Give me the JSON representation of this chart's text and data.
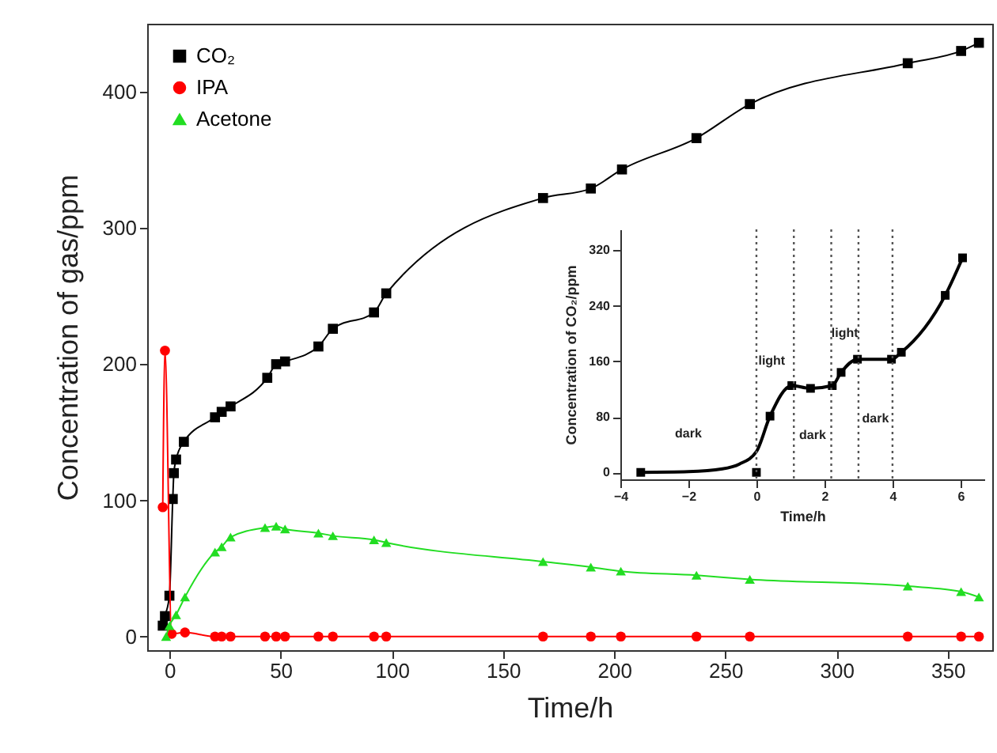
{
  "chart_data": [
    {
      "type": "line",
      "xlabel": "Time/h",
      "ylabel": "Concentration of gas/ppm",
      "xlim": [
        -10,
        370
      ],
      "ylim": [
        -10,
        450
      ],
      "xticks": [
        0,
        50,
        100,
        150,
        200,
        250,
        300,
        350
      ],
      "yticks": [
        0,
        100,
        200,
        300,
        400
      ],
      "legend": "top left",
      "grid": false,
      "line_style": "solid",
      "series": [
        {
          "name": "CO₂",
          "color": "#000000",
          "marker": "square",
          "x": [
            -3,
            -2,
            0,
            1.5,
            2,
            3,
            6.5,
            20.5,
            23.5,
            27.5,
            44,
            48,
            52,
            67,
            73.5,
            92,
            97.5,
            168,
            189.5,
            203.5,
            237,
            261,
            332,
            356,
            364
          ],
          "values": [
            8,
            15,
            30,
            101,
            120,
            130,
            143,
            161,
            165,
            169,
            190,
            200,
            202,
            213,
            226,
            238,
            252,
            322,
            329,
            343,
            366,
            391,
            421,
            430,
            436
          ]
        },
        {
          "name": "IPA",
          "color": "#ff0000",
          "marker": "circle",
          "x": [
            -3,
            -2,
            1,
            7,
            20.5,
            23.5,
            27.5,
            43,
            48,
            52,
            67,
            73.5,
            92,
            97.5,
            168,
            189.5,
            203,
            237,
            261,
            332,
            356,
            364
          ],
          "values": [
            95,
            210,
            2,
            3,
            0,
            0,
            0,
            0,
            0,
            0,
            0,
            0,
            0,
            0,
            0,
            0,
            0,
            0,
            0,
            0,
            0,
            0
          ]
        },
        {
          "name": "Acetone",
          "color": "#22dd22",
          "marker": "triangle",
          "x": [
            -1.5,
            0,
            3,
            7,
            20.5,
            23.5,
            27.5,
            43,
            48,
            52,
            67,
            73.5,
            92,
            97.5,
            168,
            189.5,
            203,
            237,
            261,
            332,
            356,
            364
          ],
          "values": [
            0,
            8,
            16,
            29,
            62,
            66,
            73,
            80,
            81,
            79,
            76,
            74,
            71,
            69,
            55,
            51,
            48,
            45,
            42,
            37,
            33,
            29
          ]
        }
      ]
    },
    {
      "type": "line",
      "xlabel": "Time/h",
      "ylabel": "Concentration of CO₂/ppm",
      "xlim": [
        -4,
        6.7
      ],
      "ylim": [
        -10,
        350
      ],
      "xticks": [
        -4,
        -2,
        0,
        2,
        4,
        6
      ],
      "yticks": [
        0,
        80,
        160,
        240,
        320
      ],
      "grid": false,
      "line_style": "solid",
      "ref_lines": [
        {
          "axis": "x",
          "value": 0,
          "line_style": "dotted",
          "color": "#555555"
        },
        {
          "axis": "x",
          "value": 1.1,
          "line_style": "dotted",
          "color": "#555555"
        },
        {
          "axis": "x",
          "value": 2.2,
          "line_style": "dotted",
          "color": "#555555"
        },
        {
          "axis": "x",
          "value": 3,
          "line_style": "dotted",
          "color": "#555555"
        },
        {
          "axis": "x",
          "value": 4,
          "line_style": "dotted",
          "color": "#555555"
        }
      ],
      "annotations": [
        "dark",
        "light",
        "dark",
        "light",
        "dark"
      ],
      "series": [
        {
          "color": "#000000",
          "marker": "none",
          "x": [
            -3.4,
            -2,
            -1,
            -0.5,
            0,
            0.4,
            1.04,
            1.59,
            2.23,
            2.49,
            2.97,
            3.97,
            4.26,
            5.55,
            6.06
          ],
          "values": [
            0,
            1,
            5,
            12,
            30,
            81,
            125,
            121,
            125,
            144,
            163,
            163,
            173,
            255,
            309
          ]
        },
        {
          "type": "scatter",
          "color": "#000000",
          "marker": "square",
          "x": [
            -3.4,
            0,
            0.4,
            1.04,
            1.59,
            2.23,
            2.49,
            2.97,
            3.97,
            4.26,
            5.55,
            6.06
          ],
          "values": [
            0,
            0,
            81,
            125,
            121,
            125,
            144,
            163,
            163,
            173,
            255,
            309
          ]
        }
      ]
    }
  ]
}
